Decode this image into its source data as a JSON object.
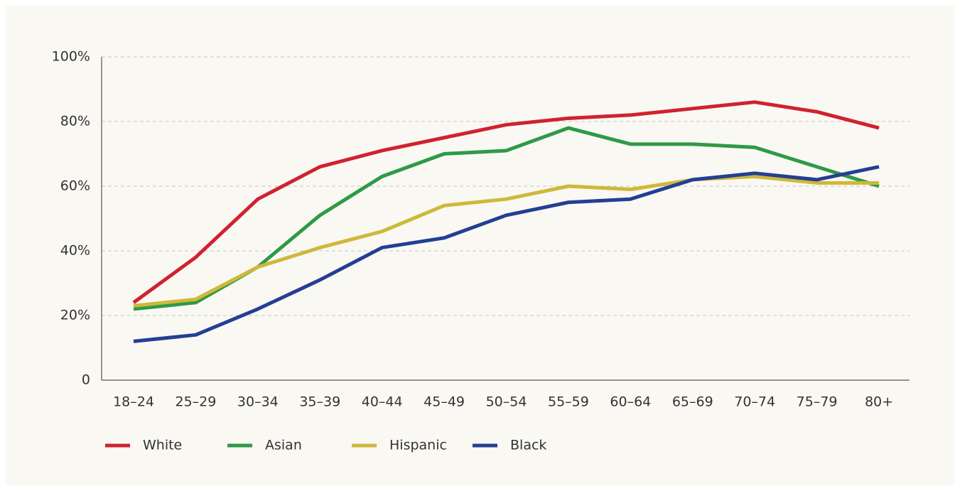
{
  "chart_data": {
    "type": "line",
    "categories": [
      "18–24",
      "25–29",
      "30–34",
      "35–39",
      "40–44",
      "45–49",
      "50–54",
      "55–59",
      "60–64",
      "65–69",
      "70–74",
      "75–79",
      "80+"
    ],
    "series": [
      {
        "name": "White",
        "color": "#d0222e",
        "values": [
          24,
          38,
          56,
          66,
          71,
          75,
          79,
          81,
          82,
          84,
          86,
          83,
          78
        ]
      },
      {
        "name": "Asian",
        "color": "#2e9a47",
        "values": [
          22,
          24,
          35,
          51,
          63,
          70,
          71,
          78,
          73,
          73,
          72,
          66,
          60
        ]
      },
      {
        "name": "Hispanic",
        "color": "#cfb83a",
        "values": [
          23,
          25,
          35,
          41,
          46,
          54,
          56,
          60,
          59,
          62,
          63,
          61,
          61
        ]
      },
      {
        "name": "Black",
        "color": "#233f94",
        "values": [
          12,
          14,
          22,
          31,
          41,
          44,
          51,
          55,
          56,
          62,
          64,
          62,
          66
        ]
      }
    ],
    "ylim": [
      0,
      100
    ],
    "yticks": [
      0,
      {
        "value": 20,
        "label": "20%"
      },
      {
        "value": 40,
        "label": "40%"
      },
      {
        "value": 60,
        "label": "60%"
      },
      {
        "value": 80,
        "label": "80%"
      },
      {
        "value": 100,
        "label": "100%"
      }
    ],
    "grid": true
  }
}
